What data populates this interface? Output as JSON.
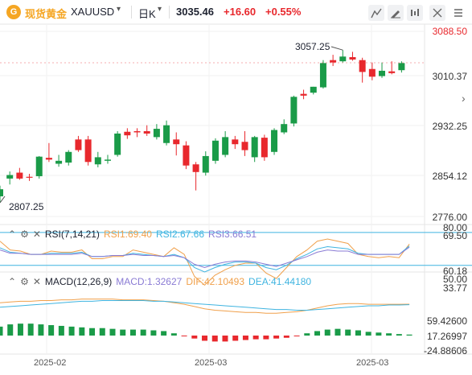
{
  "header": {
    "logo_char": "G",
    "symbol_name": "现货黄金",
    "symbol_code": "XAUUSD",
    "period": "日K",
    "last_price": "3035.46",
    "change": "+16.60",
    "change_pct": "+0.55%",
    "icons": [
      "expand-icon",
      "draw-icon",
      "indicator-icon",
      "fullscreen-icon",
      "menu-icon"
    ]
  },
  "price_axis": [
    "3088.50",
    "3010.37",
    "2932.25",
    "2854.12",
    "2776.00"
  ],
  "price_annotations": {
    "high_label": "3057.25",
    "low_label": "2807.25"
  },
  "rsi": {
    "label": "RSI(7,14,21)",
    "rsi1": "RSI1:69.40",
    "rsi2": "RSI2:67.66",
    "rsi3": "RSI3:66.51",
    "axis": [
      "80.00",
      "69.50",
      "60.18",
      "50.00",
      "33.77"
    ]
  },
  "macd": {
    "label": "MACD(12,26,9)",
    "macd_val": "MACD:1.32627",
    "dif": "DIF:42.10493",
    "dea": "DEA:41.44180",
    "axis": [
      "59.42600",
      "17.26997",
      "-24.88606"
    ]
  },
  "time_axis": [
    "2025-02",
    "2025-03",
    "2025-03"
  ],
  "colors": {
    "up": "#e8282d",
    "down": "#1a9b48",
    "rsi1": "#f0a04b",
    "rsi2": "#3fb4e0",
    "rsi3": "#8a7bd4",
    "dif": "#f0a04b",
    "dea": "#3fb4e0",
    "accent": "#f5a623"
  },
  "chart_data": [
    {
      "type": "candlestick",
      "title": "现货黄金 XAUUSD 日K",
      "ylim": [
        2776.0,
        3088.5
      ],
      "candles": [
        {
          "o": 2810,
          "h": 2828,
          "l": 2800,
          "c": 2822,
          "dir": "down"
        },
        {
          "o": 2840,
          "h": 2852,
          "l": 2830,
          "c": 2846,
          "dir": "down"
        },
        {
          "o": 2850,
          "h": 2858,
          "l": 2838,
          "c": 2840,
          "dir": "up"
        },
        {
          "o": 2842,
          "h": 2848,
          "l": 2836,
          "c": 2843,
          "dir": "up"
        },
        {
          "o": 2844,
          "h": 2878,
          "l": 2840,
          "c": 2877,
          "dir": "down"
        },
        {
          "o": 2872,
          "h": 2900,
          "l": 2868,
          "c": 2875,
          "dir": "up"
        },
        {
          "o": 2870,
          "h": 2880,
          "l": 2860,
          "c": 2865,
          "dir": "down"
        },
        {
          "o": 2867,
          "h": 2888,
          "l": 2862,
          "c": 2885,
          "dir": "down"
        },
        {
          "o": 2888,
          "h": 2912,
          "l": 2885,
          "c": 2906,
          "dir": "up"
        },
        {
          "o": 2906,
          "h": 2912,
          "l": 2862,
          "c": 2868,
          "dir": "up"
        },
        {
          "o": 2864,
          "h": 2885,
          "l": 2859,
          "c": 2876,
          "dir": "down"
        },
        {
          "o": 2872,
          "h": 2880,
          "l": 2865,
          "c": 2870,
          "dir": "down"
        },
        {
          "o": 2880,
          "h": 2920,
          "l": 2877,
          "c": 2916,
          "dir": "down"
        },
        {
          "o": 2919,
          "h": 2925,
          "l": 2907,
          "c": 2913,
          "dir": "up"
        },
        {
          "o": 2918,
          "h": 2925,
          "l": 2910,
          "c": 2920,
          "dir": "up"
        },
        {
          "o": 2916,
          "h": 2930,
          "l": 2912,
          "c": 2920,
          "dir": "up"
        },
        {
          "o": 2924,
          "h": 2932,
          "l": 2906,
          "c": 2910,
          "dir": "down"
        },
        {
          "o": 2930,
          "h": 2938,
          "l": 2896,
          "c": 2900,
          "dir": "down"
        },
        {
          "o": 2906,
          "h": 2918,
          "l": 2879,
          "c": 2898,
          "dir": "up"
        },
        {
          "o": 2896,
          "h": 2903,
          "l": 2856,
          "c": 2862,
          "dir": "up"
        },
        {
          "o": 2851,
          "h": 2868,
          "l": 2820,
          "c": 2864,
          "dir": "up"
        },
        {
          "o": 2850,
          "h": 2886,
          "l": 2845,
          "c": 2878,
          "dir": "down"
        },
        {
          "o": 2870,
          "h": 2908,
          "l": 2865,
          "c": 2904,
          "dir": "down"
        },
        {
          "o": 2880,
          "h": 2920,
          "l": 2876,
          "c": 2910,
          "dir": "down"
        },
        {
          "o": 2906,
          "h": 2912,
          "l": 2890,
          "c": 2898,
          "dir": "up"
        },
        {
          "o": 2902,
          "h": 2920,
          "l": 2878,
          "c": 2888,
          "dir": "up"
        },
        {
          "o": 2876,
          "h": 2912,
          "l": 2868,
          "c": 2910,
          "dir": "down"
        },
        {
          "o": 2909,
          "h": 2914,
          "l": 2870,
          "c": 2876,
          "dir": "up"
        },
        {
          "o": 2885,
          "h": 2925,
          "l": 2880,
          "c": 2922,
          "dir": "down"
        },
        {
          "o": 2918,
          "h": 2940,
          "l": 2915,
          "c": 2932,
          "dir": "down"
        },
        {
          "o": 2933,
          "h": 2980,
          "l": 2928,
          "c": 2978,
          "dir": "down"
        },
        {
          "o": 2983,
          "h": 2990,
          "l": 2974,
          "c": 2980,
          "dir": "up"
        },
        {
          "o": 2985,
          "h": 2995,
          "l": 2982,
          "c": 2995,
          "dir": "down"
        },
        {
          "o": 2994,
          "h": 3040,
          "l": 2992,
          "c": 3035,
          "dir": "down"
        },
        {
          "o": 3036,
          "h": 3049,
          "l": 3030,
          "c": 3040,
          "dir": "up"
        },
        {
          "o": 3038,
          "h": 3057,
          "l": 3036,
          "c": 3046,
          "dir": "down"
        },
        {
          "o": 3045,
          "h": 3054,
          "l": 3039,
          "c": 3041,
          "dir": "up"
        },
        {
          "o": 3040,
          "h": 3044,
          "l": 3002,
          "c": 3020,
          "dir": "up"
        },
        {
          "o": 3025,
          "h": 3036,
          "l": 3006,
          "c": 3012,
          "dir": "up"
        },
        {
          "o": 3013,
          "h": 3036,
          "l": 3010,
          "c": 3022,
          "dir": "down"
        },
        {
          "o": 3021,
          "h": 3038,
          "l": 3016,
          "c": 3018,
          "dir": "up"
        },
        {
          "o": 3023,
          "h": 3038,
          "l": 3019,
          "c": 3035,
          "dir": "down"
        }
      ]
    },
    {
      "type": "line",
      "title": "RSI(7,14,21)",
      "ylim": [
        30,
        85
      ],
      "series": [
        {
          "name": "RSI1",
          "values": [
            72,
            64,
            63,
            60,
            60,
            63,
            62,
            62,
            64,
            56,
            56,
            58,
            58,
            64,
            62,
            60,
            58,
            66,
            60,
            40,
            32,
            41,
            46,
            50,
            52,
            52,
            43,
            38,
            48,
            58,
            64,
            72,
            74,
            72,
            70,
            60,
            58,
            57,
            58,
            57,
            69.4
          ]
        },
        {
          "name": "RSI2",
          "values": [
            66,
            62,
            61,
            60,
            60,
            61,
            61,
            61,
            62,
            58,
            58,
            59,
            59,
            61,
            60,
            59,
            58,
            60,
            57,
            48,
            44,
            48,
            51,
            53,
            53,
            52,
            48,
            46,
            50,
            56,
            60,
            65,
            67,
            66,
            65,
            61,
            60,
            60,
            60,
            60,
            67.66
          ]
        },
        {
          "name": "RSI3",
          "values": [
            64,
            61,
            61,
            60,
            60,
            60,
            60,
            60,
            61,
            58,
            58,
            59,
            59,
            60,
            59,
            59,
            58,
            59,
            57,
            51,
            48,
            51,
            53,
            54,
            54,
            53,
            51,
            49,
            52,
            55,
            58,
            62,
            64,
            63,
            63,
            60,
            60,
            60,
            60,
            60,
            66.51
          ]
        }
      ]
    },
    {
      "type": "bar",
      "title": "MACD(12,26,9)",
      "ylim": [
        -24.88606,
        59.426
      ],
      "series": [
        {
          "name": "MACD",
          "values": [
            12,
            15,
            16,
            16,
            15,
            14,
            13,
            12,
            11,
            10,
            10,
            9,
            8,
            8,
            8,
            7,
            6,
            3,
            -1,
            -4,
            -7,
            -8,
            -8,
            -7,
            -6,
            -5,
            -5,
            -4,
            -3,
            -1,
            3,
            6,
            8,
            9,
            8,
            7,
            5,
            4,
            3,
            2,
            1.32627
          ]
        },
        {
          "name": "DIF",
          "values": [
            44,
            45,
            46,
            46,
            47,
            47,
            48,
            48,
            49,
            49,
            49,
            49,
            48,
            48,
            48,
            47,
            46,
            44,
            42,
            39,
            36,
            34,
            33,
            32,
            31,
            31,
            30,
            30,
            31,
            32,
            34,
            37,
            40,
            42,
            43,
            43,
            42,
            42,
            42,
            42,
            42.10493
          ]
        },
        {
          "name": "DEA",
          "values": [
            38,
            39,
            40,
            41,
            42,
            43,
            44,
            45,
            46,
            46,
            47,
            47,
            47,
            47,
            47,
            46,
            46,
            45,
            44,
            43,
            42,
            41,
            40,
            39,
            38,
            37,
            36,
            35,
            35,
            34,
            34,
            35,
            36,
            37,
            38,
            39,
            40,
            40,
            41,
            41,
            41.4418
          ]
        }
      ]
    }
  ]
}
